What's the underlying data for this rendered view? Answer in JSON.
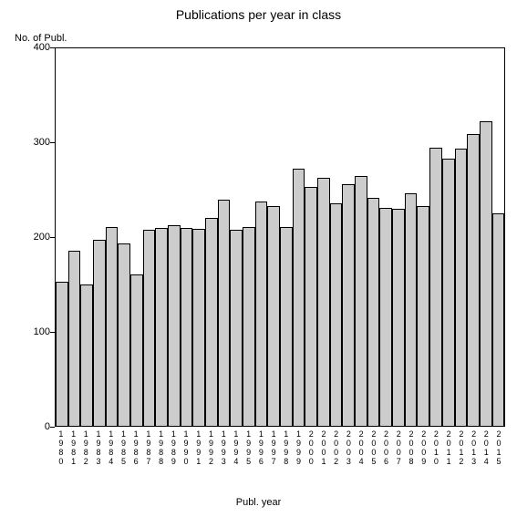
{
  "chart": {
    "type": "bar",
    "title": "Publications per year in class",
    "title_fontsize": 14,
    "y_axis_title": "No. of Publ.",
    "x_axis_title": "Publ. year",
    "label_fontsize": 11,
    "tick_fontsize": 11,
    "xtick_fontsize": 9,
    "background_color": "#ffffff",
    "plot_border_color": "#000000",
    "bar_fill": "#cccccc",
    "bar_border": "#000000",
    "text_color": "#000000",
    "ylim": [
      0,
      400
    ],
    "ytick_step": 100,
    "yticks": [
      0,
      100,
      200,
      300,
      400
    ],
    "categories": [
      "1980",
      "1981",
      "1982",
      "1983",
      "1984",
      "1985",
      "1986",
      "1987",
      "1988",
      "1989",
      "1990",
      "1991",
      "1992",
      "1993",
      "1994",
      "1995",
      "1996",
      "1997",
      "1998",
      "1999",
      "2000",
      "2001",
      "2002",
      "2003",
      "2004",
      "2005",
      "2006",
      "2007",
      "2008",
      "2009",
      "2010",
      "2011",
      "2012",
      "2013",
      "2014",
      "2015"
    ],
    "values": [
      153,
      186,
      150,
      197,
      211,
      193,
      160,
      208,
      210,
      213,
      210,
      209,
      220,
      240,
      208,
      211,
      238,
      233,
      211,
      272,
      253,
      263,
      236,
      256,
      265,
      242,
      231,
      230,
      246,
      233,
      295,
      283,
      294,
      309,
      323,
      225
    ],
    "bar_width": 1.0
  }
}
